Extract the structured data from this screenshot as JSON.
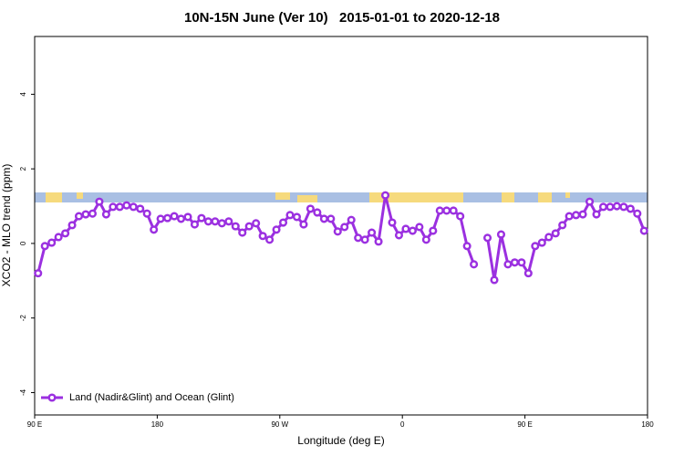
{
  "chart_data": {
    "type": "line",
    "title": "10N-15N June (Ver 10)   2015-01-01 to 2020-12-18",
    "x_label": "Longitude (deg E)",
    "y_label": "XCO2 - MLO trend (ppm)",
    "xlim": [
      90,
      540
    ],
    "xticks": [
      {
        "value": 90,
        "label": "90 E"
      },
      180,
      {
        "value": 270,
        "label": "90 W"
      },
      {
        "value": 360,
        "label": "0"
      },
      {
        "value": 450,
        "label": "90 E"
      },
      {
        "value": 540,
        "label": "180"
      }
    ],
    "ylim": [
      -4.6,
      5.55
    ],
    "yticks": [
      -4,
      -2,
      0,
      2,
      4
    ],
    "legend": "bottom-left",
    "x": [
      92.5,
      97.5,
      102.5,
      107.5,
      112.5,
      117.5,
      122.5,
      127.5,
      132.5,
      137.5,
      142.5,
      147.5,
      152.5,
      157.5,
      162.5,
      167.5,
      172.5,
      177.5,
      182.5,
      187.5,
      192.5,
      197.5,
      202.5,
      207.5,
      212.5,
      217.5,
      222.5,
      227.5,
      232.5,
      237.5,
      242.5,
      247.5,
      252.5,
      257.5,
      262.5,
      267.5,
      272.5,
      277.5,
      282.5,
      287.5,
      292.5,
      297.5,
      302.5,
      307.5,
      312.5,
      317.5,
      322.5,
      327.5,
      332.5,
      337.5,
      342.5,
      347.5,
      352.5,
      357.5,
      362.5,
      367.5,
      372.5,
      377.5,
      382.5,
      387.5,
      392.5,
      397.5,
      402.5,
      407.5,
      412.5,
      417.5,
      422.5,
      427.5,
      432.5,
      437.5,
      442.5,
      447.5,
      452.5,
      457.5,
      462.5,
      467.5,
      472.5,
      477.5,
      482.5,
      487.5,
      492.5,
      497.5,
      502.5,
      507.5,
      512.5,
      517.5,
      522.5,
      527.5,
      532.5,
      537.5
    ],
    "series": [
      {
        "name": "Land (Nadir&Glint) and Ocean (Glint)",
        "color": "#9b30e0",
        "values": [
          -0.8,
          -0.07,
          0.02,
          0.17,
          0.27,
          0.49,
          0.73,
          0.78,
          0.8,
          1.12,
          0.78,
          0.98,
          0.98,
          1.02,
          0.98,
          0.93,
          0.8,
          0.37,
          0.66,
          0.68,
          0.73,
          0.66,
          0.71,
          0.51,
          0.68,
          0.59,
          0.59,
          0.54,
          0.59,
          0.46,
          0.29,
          0.46,
          0.54,
          0.2,
          0.1,
          0.37,
          0.56,
          0.76,
          0.71,
          0.51,
          0.93,
          0.83,
          0.66,
          0.66,
          0.32,
          0.44,
          0.63,
          0.15,
          0.1,
          0.29,
          0.05,
          1.29,
          0.56,
          0.22,
          0.39,
          0.34,
          0.44,
          0.1,
          0.34,
          0.88,
          0.88,
          0.88,
          0.73,
          -0.07,
          -0.56,
          null,
          0.15,
          -0.98,
          0.24,
          -0.56,
          -0.51,
          -0.51,
          -0.8,
          -0.07,
          0.02,
          0.17,
          0.27,
          0.49,
          0.73,
          0.76,
          0.78,
          1.12,
          0.78,
          0.98,
          0.98,
          1.0,
          0.98,
          0.93,
          0.8,
          0.34
        ]
      }
    ]
  }
}
